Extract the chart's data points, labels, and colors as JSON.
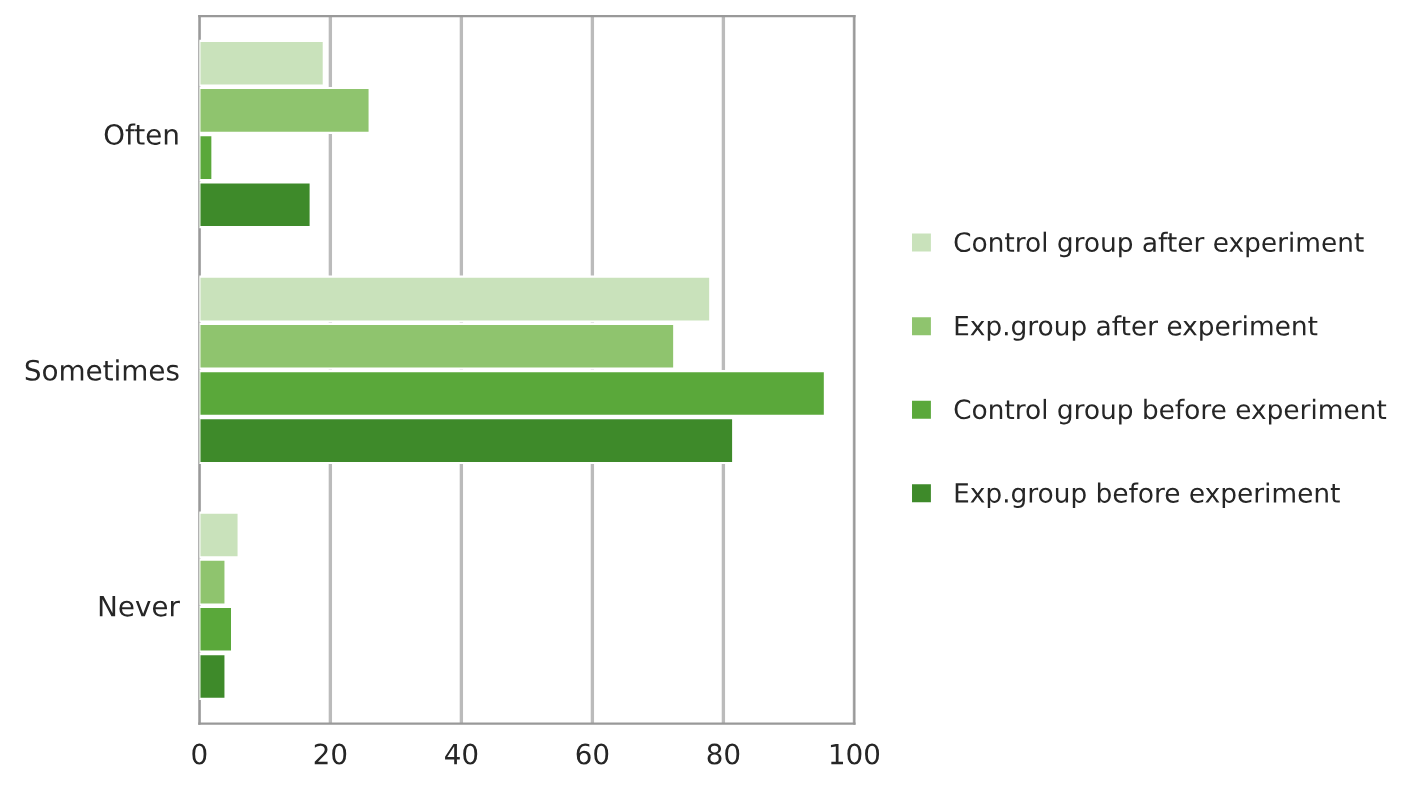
{
  "chart_data": {
    "type": "bar",
    "orientation": "horizontal",
    "categories": [
      "Often",
      "Sometimes",
      "Never"
    ],
    "series": [
      {
        "name": "Control group after experiment",
        "color": "#c9e2bb",
        "values": [
          19,
          78,
          6
        ]
      },
      {
        "name": "Exp.group after experiment",
        "color": "#8fc46e",
        "values": [
          26,
          72.5,
          4
        ]
      },
      {
        "name": "Control group before experiment",
        "color": "#5aa83a",
        "values": [
          2,
          95.5,
          5
        ]
      },
      {
        "name": "Exp.group before experiment",
        "color": "#3e8a2a",
        "values": [
          17,
          81.5,
          4
        ]
      }
    ],
    "xlim": [
      0,
      100
    ],
    "xticks": [
      0,
      20,
      40,
      60,
      80,
      100
    ],
    "grid": "x",
    "legend": "right"
  }
}
